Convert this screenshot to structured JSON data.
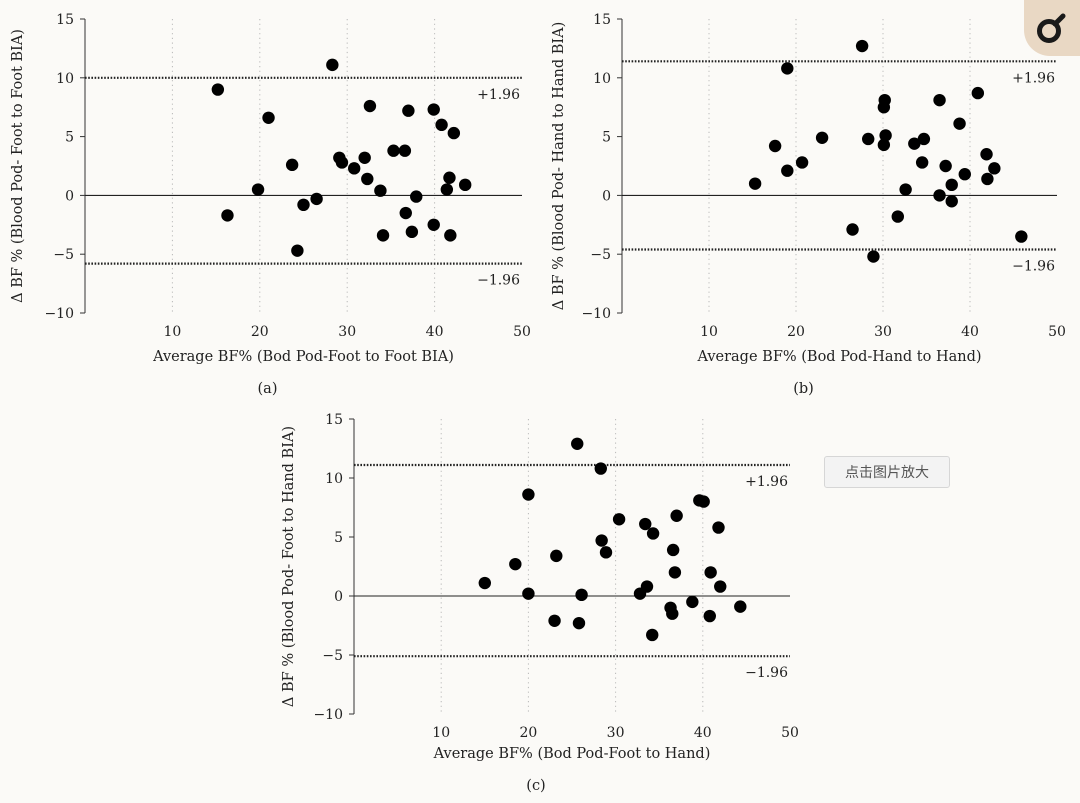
{
  "chart_data": [
    {
      "type": "scatter",
      "panel_label": "(a)",
      "xlabel": "Average BF% (Bod Pod-Foot to Foot BIA)",
      "ylabel": "Δ BF % (Blood Pod- Foot to Foot BIA)",
      "xlim": [
        0,
        50
      ],
      "ylim": [
        -10,
        15
      ],
      "xticks": [
        10,
        20,
        30,
        40,
        50
      ],
      "yticks": [
        -10,
        -5,
        0,
        5,
        10,
        15
      ],
      "upper_loa": 10.0,
      "lower_loa": -5.8,
      "upper_label": "+1.96",
      "lower_label": "−1.96",
      "points": [
        [
          15.2,
          9.0
        ],
        [
          16.3,
          -1.7
        ],
        [
          19.8,
          0.5
        ],
        [
          21.0,
          6.6
        ],
        [
          23.7,
          2.6
        ],
        [
          24.3,
          -4.7
        ],
        [
          25.0,
          -0.8
        ],
        [
          26.5,
          -0.3
        ],
        [
          28.3,
          11.1
        ],
        [
          29.1,
          3.2
        ],
        [
          29.4,
          2.8
        ],
        [
          30.8,
          2.3
        ],
        [
          32.0,
          3.2
        ],
        [
          32.3,
          1.4
        ],
        [
          32.6,
          7.6
        ],
        [
          33.8,
          0.4
        ],
        [
          34.1,
          -3.4
        ],
        [
          35.3,
          3.8
        ],
        [
          36.6,
          3.8
        ],
        [
          36.7,
          -1.5
        ],
        [
          37.0,
          7.2
        ],
        [
          37.4,
          -3.1
        ],
        [
          37.9,
          -0.1
        ],
        [
          39.9,
          7.3
        ],
        [
          39.9,
          -2.5
        ],
        [
          40.8,
          6.0
        ],
        [
          41.4,
          0.5
        ],
        [
          41.7,
          1.5
        ],
        [
          41.8,
          -3.4
        ],
        [
          42.2,
          5.3
        ],
        [
          43.5,
          0.9
        ]
      ]
    },
    {
      "type": "scatter",
      "panel_label": "(b)",
      "xlabel": "Average BF% (Bod Pod-Hand to Hand)",
      "ylabel": "Δ BF % (Blood Pod- Hand to Hand BIA)",
      "xlim": [
        0,
        50
      ],
      "ylim": [
        -10,
        15
      ],
      "xticks": [
        10,
        20,
        30,
        40,
        50
      ],
      "yticks": [
        -10,
        -5,
        0,
        5,
        10,
        15
      ],
      "upper_loa": 11.4,
      "lower_loa": -4.6,
      "upper_label": "+1.96",
      "lower_label": "−1.96",
      "points": [
        [
          15.3,
          1.0
        ],
        [
          17.6,
          4.2
        ],
        [
          19.0,
          2.1
        ],
        [
          19.0,
          10.8
        ],
        [
          20.7,
          2.8
        ],
        [
          23.0,
          4.9
        ],
        [
          26.5,
          -2.9
        ],
        [
          27.6,
          12.7
        ],
        [
          28.3,
          4.8
        ],
        [
          28.9,
          -5.2
        ],
        [
          30.1,
          4.3
        ],
        [
          30.1,
          7.5
        ],
        [
          30.2,
          8.1
        ],
        [
          30.3,
          5.1
        ],
        [
          31.7,
          -1.8
        ],
        [
          32.6,
          0.5
        ],
        [
          33.6,
          4.4
        ],
        [
          34.5,
          2.8
        ],
        [
          34.7,
          4.8
        ],
        [
          36.5,
          0.0
        ],
        [
          36.5,
          8.1
        ],
        [
          37.2,
          2.5
        ],
        [
          37.9,
          0.9
        ],
        [
          37.9,
          -0.5
        ],
        [
          38.8,
          6.1
        ],
        [
          39.4,
          1.8
        ],
        [
          40.9,
          8.7
        ],
        [
          41.9,
          3.5
        ],
        [
          42.0,
          1.4
        ],
        [
          42.8,
          2.3
        ],
        [
          45.9,
          -3.5
        ]
      ]
    },
    {
      "type": "scatter",
      "panel_label": "(c)",
      "xlabel": "Average BF% (Bod Pod-Foot to Hand)",
      "ylabel": "Δ BF % (Blood Pod- Foot to Hand BIA)",
      "xlim": [
        0,
        50
      ],
      "ylim": [
        -10,
        15
      ],
      "xticks": [
        10,
        20,
        30,
        40,
        50
      ],
      "yticks": [
        -10,
        -5,
        0,
        5,
        10,
        15
      ],
      "upper_loa": 11.1,
      "lower_loa": -5.1,
      "upper_label": "+1.96",
      "lower_label": "−1.96",
      "points": [
        [
          15.0,
          1.1
        ],
        [
          18.5,
          2.7
        ],
        [
          20.0,
          8.6
        ],
        [
          20.0,
          0.2
        ],
        [
          23.0,
          -2.1
        ],
        [
          23.2,
          3.4
        ],
        [
          25.6,
          12.9
        ],
        [
          25.8,
          -2.3
        ],
        [
          26.1,
          0.1
        ],
        [
          28.3,
          10.8
        ],
        [
          28.4,
          4.7
        ],
        [
          28.9,
          3.7
        ],
        [
          30.4,
          6.5
        ],
        [
          32.8,
          0.2
        ],
        [
          33.4,
          6.1
        ],
        [
          33.6,
          0.8
        ],
        [
          34.2,
          -3.3
        ],
        [
          34.3,
          5.3
        ],
        [
          36.3,
          -1.0
        ],
        [
          36.5,
          -1.5
        ],
        [
          36.6,
          3.9
        ],
        [
          36.8,
          2.0
        ],
        [
          37.0,
          6.8
        ],
        [
          38.8,
          -0.5
        ],
        [
          39.6,
          8.1
        ],
        [
          40.1,
          8.0
        ],
        [
          40.8,
          -1.7
        ],
        [
          40.9,
          2.0
        ],
        [
          41.8,
          5.8
        ],
        [
          42.0,
          0.8
        ],
        [
          44.3,
          -0.9
        ]
      ]
    }
  ],
  "ui": {
    "enlarge_tooltip": "点击图片放大",
    "accent_color": "#e9d8c4"
  }
}
